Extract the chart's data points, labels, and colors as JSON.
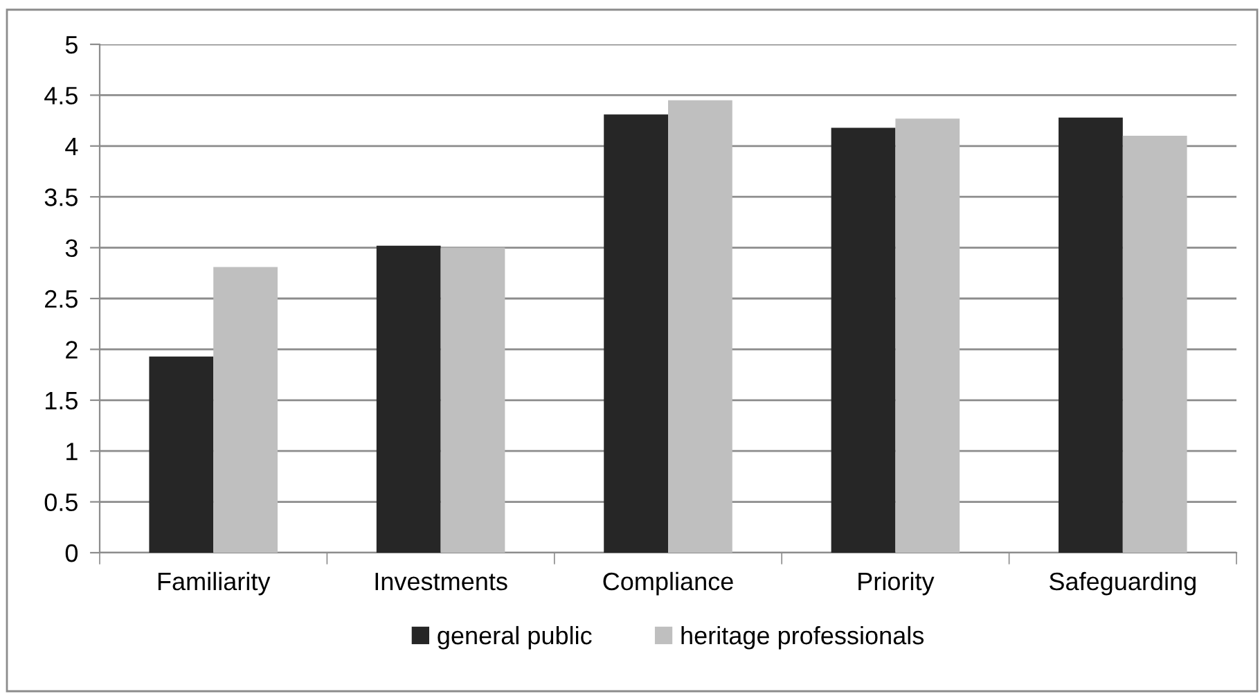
{
  "chart_data": {
    "type": "bar",
    "categories": [
      "Familiarity",
      "Investments",
      "Compliance",
      "Priority",
      "Safeguarding"
    ],
    "series": [
      {
        "name": "general public",
        "color": "#262626",
        "values": [
          1.93,
          3.02,
          4.31,
          4.18,
          4.28
        ]
      },
      {
        "name": "heritage professionals",
        "color": "#bfbfbf",
        "values": [
          2.81,
          3.0,
          4.45,
          4.27,
          4.1
        ]
      }
    ],
    "ylim": [
      0,
      5
    ],
    "yticks": [
      0,
      0.5,
      1,
      1.5,
      2,
      2.5,
      3,
      3.5,
      4,
      4.5,
      5
    ],
    "grid": "y",
    "legend": "bottom"
  }
}
